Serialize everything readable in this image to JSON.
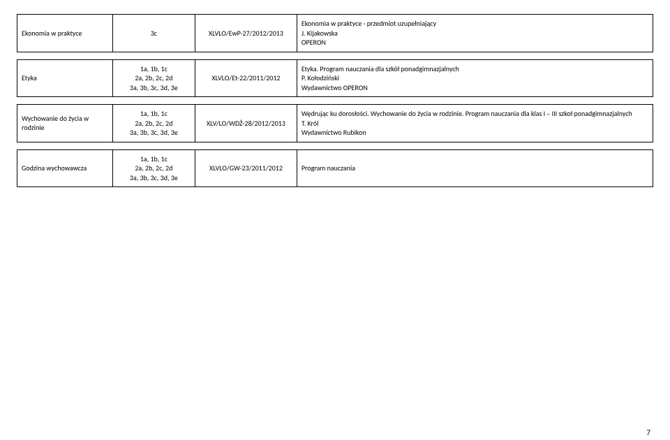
{
  "rows": [
    {
      "subject": "Ekonomia w praktyce",
      "classes": "3c",
      "code": "XLVLO/EwP-27/2012/2013",
      "desc": "Ekonomia w praktyce - przedmiot uzupełniający\nJ. Kijakowska\nOPERON"
    },
    {
      "subject": "Etyka",
      "classes": "1a, 1b, 1c\n2a, 2b, 2c, 2d\n3a, 3b, 3c, 3d, 3e",
      "code": "XLVLO/Et-22/2011/2012",
      "desc": "Etyka. Program nauczania dla szkół ponadgimnazjalnych\nP. Kołodziński\nWydawnictwo OPERON"
    },
    {
      "subject": "Wychowanie do życia w rodzinie",
      "classes": "1a, 1b, 1c\n2a, 2b, 2c, 2d\n3a, 3b, 3c, 3d, 3e",
      "code": "XLV/LO/WDŻ-28/2012/2013",
      "desc": "Wędrując ku dorosłości. Wychowanie do życia w rodzinie. Program nauczania dla klas I – III szkoł ponadgimnazjalnych\nT. Król\nWydawnictwo Rubikon"
    },
    {
      "subject": "Godzina wychowawcza",
      "classes": "1a, 1b, 1c\n2a, 2b, 2c, 2d\n3a, 3b, 3c, 3d, 3e",
      "code": "XLVLO/GW-23/2011/2012",
      "desc": "Program nauczania"
    }
  ],
  "page_number": "7"
}
